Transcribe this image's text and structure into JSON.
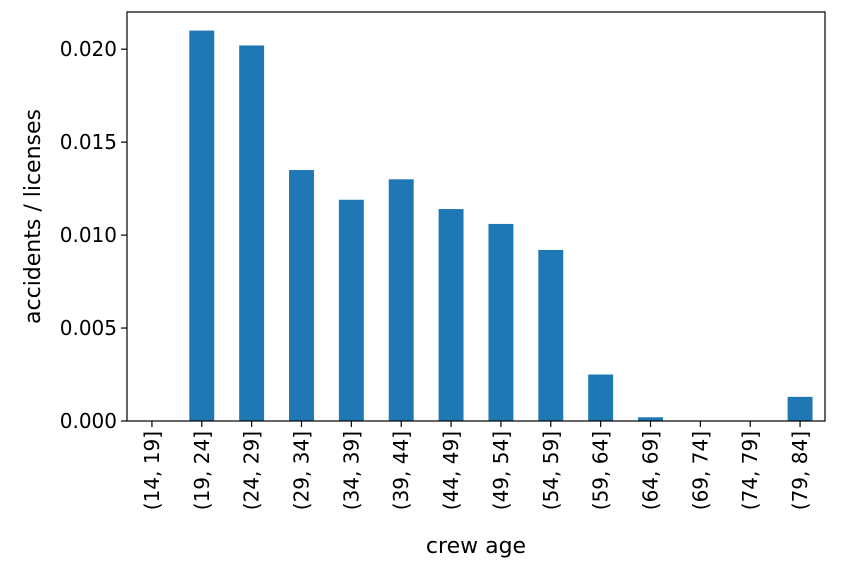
{
  "chart_data": {
    "type": "bar",
    "title": "",
    "xlabel": "crew age",
    "ylabel": "accidents / licenses",
    "categories": [
      "(14, 19]",
      "(19, 24]",
      "(24, 29]",
      "(29, 34]",
      "(34, 39]",
      "(39, 44]",
      "(44, 49]",
      "(49, 54]",
      "(54, 59]",
      "(59, 64]",
      "(64, 69]",
      "(69, 74]",
      "(74, 79]",
      "(79, 84]"
    ],
    "values": [
      0.0,
      0.021,
      0.0202,
      0.0135,
      0.0119,
      0.013,
      0.0114,
      0.0106,
      0.0092,
      0.0025,
      0.0002,
      0.0,
      0.0,
      0.0013
    ],
    "ylim": [
      0.0,
      0.022
    ],
    "yticks": [
      0.0,
      0.005,
      0.01,
      0.015,
      0.02
    ],
    "ytick_labels": [
      "0.000",
      "0.005",
      "0.010",
      "0.015",
      "0.020"
    ],
    "bar_color": "#1f77b4",
    "grid": false,
    "legend": "none"
  }
}
